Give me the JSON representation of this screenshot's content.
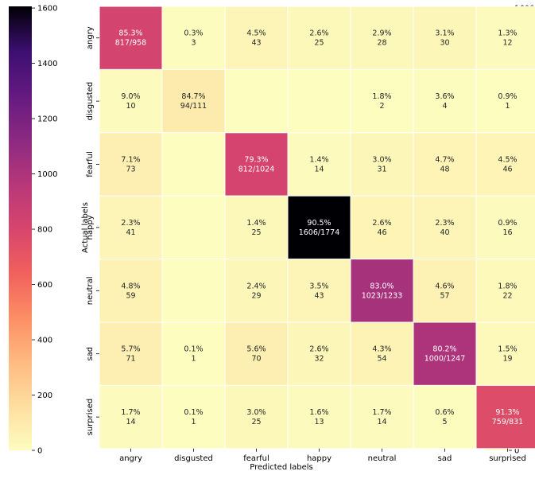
{
  "chart_data": {
    "type": "heatmap",
    "xlabel": "Predicted labels",
    "ylabel": "Actual labels",
    "x_categories": [
      "angry",
      "disgusted",
      "fearful",
      "happy",
      "neutral",
      "sad",
      "surprised"
    ],
    "y_categories": [
      "angry",
      "disgusted",
      "fearful",
      "happy",
      "neutral",
      "sad",
      "surprised"
    ],
    "colormap": "magma_r",
    "color_range": [
      0,
      1606
    ],
    "colorbar_ticks": [
      0,
      200,
      400,
      600,
      800,
      1000,
      1200,
      1400,
      1600
    ],
    "cells": [
      [
        {
          "pct": "85.3%",
          "count": "817/958",
          "value": 817
        },
        {
          "pct": "0.3%",
          "count": "3",
          "value": 3
        },
        {
          "pct": "4.5%",
          "count": "43",
          "value": 43
        },
        {
          "pct": "2.6%",
          "count": "25",
          "value": 25
        },
        {
          "pct": "2.9%",
          "count": "28",
          "value": 28
        },
        {
          "pct": "3.1%",
          "count": "30",
          "value": 30
        },
        {
          "pct": "1.3%",
          "count": "12",
          "value": 12
        }
      ],
      [
        {
          "pct": "9.0%",
          "count": "10",
          "value": 10
        },
        {
          "pct": "84.7%",
          "count": "94/111",
          "value": 94
        },
        {
          "pct": "",
          "count": "",
          "value": 0
        },
        {
          "pct": "",
          "count": "",
          "value": 0
        },
        {
          "pct": "1.8%",
          "count": "2",
          "value": 2
        },
        {
          "pct": "3.6%",
          "count": "4",
          "value": 4
        },
        {
          "pct": "0.9%",
          "count": "1",
          "value": 1
        }
      ],
      [
        {
          "pct": "7.1%",
          "count": "73",
          "value": 73
        },
        {
          "pct": "",
          "count": "",
          "value": 0
        },
        {
          "pct": "79.3%",
          "count": "812/1024",
          "value": 812
        },
        {
          "pct": "1.4%",
          "count": "14",
          "value": 14
        },
        {
          "pct": "3.0%",
          "count": "31",
          "value": 31
        },
        {
          "pct": "4.7%",
          "count": "48",
          "value": 48
        },
        {
          "pct": "4.5%",
          "count": "46",
          "value": 46
        }
      ],
      [
        {
          "pct": "2.3%",
          "count": "41",
          "value": 41
        },
        {
          "pct": "",
          "count": "",
          "value": 0
        },
        {
          "pct": "1.4%",
          "count": "25",
          "value": 25
        },
        {
          "pct": "90.5%",
          "count": "1606/1774",
          "value": 1606
        },
        {
          "pct": "2.6%",
          "count": "46",
          "value": 46
        },
        {
          "pct": "2.3%",
          "count": "40",
          "value": 40
        },
        {
          "pct": "0.9%",
          "count": "16",
          "value": 16
        }
      ],
      [
        {
          "pct": "4.8%",
          "count": "59",
          "value": 59
        },
        {
          "pct": "",
          "count": "",
          "value": 0
        },
        {
          "pct": "2.4%",
          "count": "29",
          "value": 29
        },
        {
          "pct": "3.5%",
          "count": "43",
          "value": 43
        },
        {
          "pct": "83.0%",
          "count": "1023/1233",
          "value": 1023
        },
        {
          "pct": "4.6%",
          "count": "57",
          "value": 57
        },
        {
          "pct": "1.8%",
          "count": "22",
          "value": 22
        }
      ],
      [
        {
          "pct": "5.7%",
          "count": "71",
          "value": 71
        },
        {
          "pct": "0.1%",
          "count": "1",
          "value": 1
        },
        {
          "pct": "5.6%",
          "count": "70",
          "value": 70
        },
        {
          "pct": "2.6%",
          "count": "32",
          "value": 32
        },
        {
          "pct": "4.3%",
          "count": "54",
          "value": 54
        },
        {
          "pct": "80.2%",
          "count": "1000/1247",
          "value": 1000
        },
        {
          "pct": "1.5%",
          "count": "19",
          "value": 19
        }
      ],
      [
        {
          "pct": "1.7%",
          "count": "14",
          "value": 14
        },
        {
          "pct": "0.1%",
          "count": "1",
          "value": 1
        },
        {
          "pct": "3.0%",
          "count": "25",
          "value": 25
        },
        {
          "pct": "1.6%",
          "count": "13",
          "value": 13
        },
        {
          "pct": "1.7%",
          "count": "14",
          "value": 14
        },
        {
          "pct": "0.6%",
          "count": "5",
          "value": 5
        },
        {
          "pct": "91.3%",
          "count": "759/831",
          "value": 759
        }
      ]
    ]
  }
}
